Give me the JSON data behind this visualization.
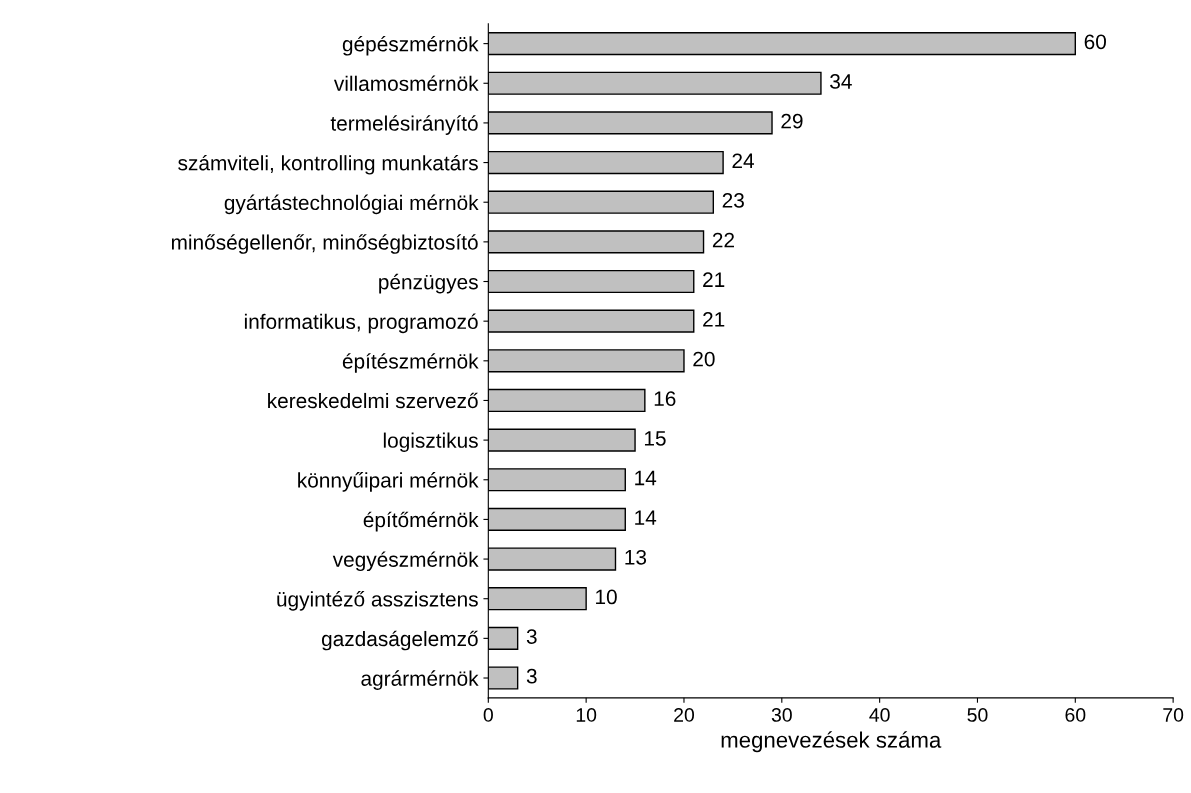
{
  "chart_data": {
    "type": "bar",
    "orientation": "horizontal",
    "xlabel": "megnevezések száma",
    "categories": [
      "gépészmérnök",
      "villamosmérnök",
      "termelésirányító",
      "számviteli, kontrolling munkatárs",
      "gyártástechnológiai mérnök",
      "minőségellenőr, minőségbiztosító",
      "pénzügyes",
      "informatikus, programozó",
      "építészmérnök",
      "kereskedelmi szervező",
      "logisztikus",
      "könnyűipari mérnök",
      "építőmérnök",
      "vegyészmérnök",
      "ügyintéző asszisztens",
      "gazdaságelemző",
      "agrármérnök"
    ],
    "values": [
      60,
      34,
      29,
      24,
      23,
      22,
      21,
      21,
      20,
      16,
      15,
      14,
      14,
      13,
      10,
      3,
      3
    ],
    "color": "#c0c0c0",
    "xlim": [
      0,
      70
    ],
    "xticks": [
      0,
      10,
      20,
      30,
      40,
      50,
      60,
      70
    ],
    "data_labels": true,
    "grid": false,
    "legend": false
  }
}
